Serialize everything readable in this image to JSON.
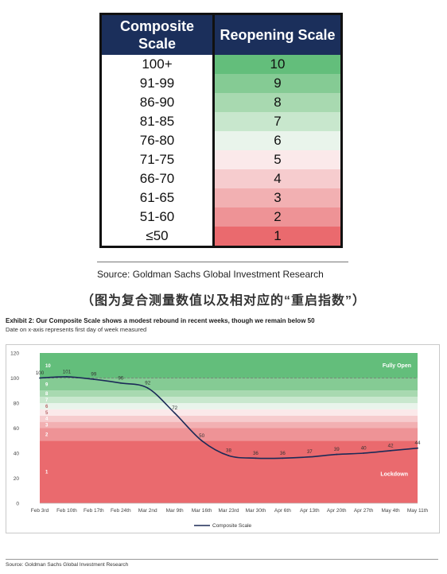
{
  "scale_table": {
    "headers": [
      "Composite Scale",
      "Reopening Scale"
    ],
    "rows": [
      {
        "composite": "100+",
        "reopening": "10",
        "color": "#63be7b"
      },
      {
        "composite": "91-99",
        "reopening": "9",
        "color": "#85cb94"
      },
      {
        "composite": "86-90",
        "reopening": "8",
        "color": "#a8d9b0"
      },
      {
        "composite": "81-85",
        "reopening": "7",
        "color": "#c8e7cd"
      },
      {
        "composite": "76-80",
        "reopening": "6",
        "color": "#e9f4eb"
      },
      {
        "composite": "71-75",
        "reopening": "5",
        "color": "#fbe9ea"
      },
      {
        "composite": "66-70",
        "reopening": "4",
        "color": "#f6ccce"
      },
      {
        "composite": "61-65",
        "reopening": "3",
        "color": "#f2b0b2"
      },
      {
        "composite": "51-60",
        "reopening": "2",
        "color": "#ee9396"
      },
      {
        "composite": "≤50",
        "reopening": "1",
        "color": "#ea6a6e"
      }
    ],
    "source": "Source: Goldman Sachs Global Investment Research"
  },
  "caption": "（图为复合测量数值以及相对应的“重启指数”）",
  "exhibit": {
    "title": "Exhibit 2: Our Composite Scale shows a modest rebound in recent weeks, though we remain below 50",
    "subtitle": "Date on x-axis represents first day of week measured",
    "source": "Source: Goldman Sachs Global Investment Research"
  },
  "chart_data": {
    "type": "line",
    "x": [
      "Feb 3rd",
      "Feb 10th",
      "Feb 17th",
      "Feb 24th",
      "Mar 2nd",
      "Mar 9th",
      "Mar 16th",
      "Mar 23rd",
      "Mar 30th",
      "Apr 6th",
      "Apr 13th",
      "Apr 20th",
      "Apr 27th",
      "May 4th",
      "May 11th"
    ],
    "series": [
      {
        "name": "Composite Scale",
        "color": "#1b2a57",
        "values": [
          100,
          101,
          99,
          96,
          92,
          72,
          50,
          38,
          36,
          36,
          37,
          39,
          40,
          42,
          44
        ]
      }
    ],
    "point_labels": [
      "100",
      "101",
      "99",
      "96",
      "92",
      "72",
      "50",
      "38",
      "36",
      "36",
      "37",
      "39",
      "40",
      "42",
      "44"
    ],
    "yticks": [
      0,
      20,
      40,
      60,
      80,
      100,
      120
    ],
    "ylim": [
      0,
      120
    ],
    "reference_line": 100,
    "bands": [
      {
        "label": "1",
        "from": 0,
        "to": 50,
        "color": "#ea6a6e"
      },
      {
        "label": "2",
        "from": 50,
        "to": 60,
        "color": "#ee9396"
      },
      {
        "label": "3",
        "from": 60,
        "to": 65,
        "color": "#f2b0b2"
      },
      {
        "label": "4",
        "from": 65,
        "to": 70,
        "color": "#f6ccce"
      },
      {
        "label": "5",
        "from": 70,
        "to": 75,
        "color": "#fbe9ea"
      },
      {
        "label": "6",
        "from": 75,
        "to": 80,
        "color": "#e9f4eb"
      },
      {
        "label": "7",
        "from": 80,
        "to": 85,
        "color": "#c8e7cd"
      },
      {
        "label": "8",
        "from": 85,
        "to": 90,
        "color": "#a8d9b0"
      },
      {
        "label": "9",
        "from": 90,
        "to": 100,
        "color": "#85cb94"
      },
      {
        "label": "10",
        "from": 100,
        "to": 120,
        "color": "#63be7b"
      }
    ],
    "annotations": [
      "Fully Open",
      "Lockdown"
    ],
    "legend_position": "bottom"
  }
}
